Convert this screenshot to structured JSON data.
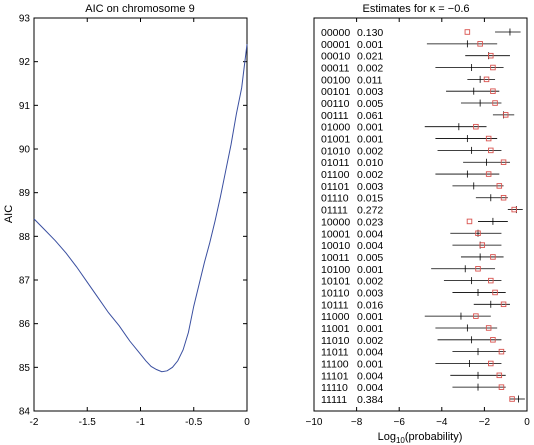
{
  "chart_data": [
    {
      "type": "line",
      "title": "AIC on chromosome 9",
      "xlabel": "",
      "ylabel": "AIC",
      "xlim": [
        -2,
        0
      ],
      "ylim": [
        84,
        93
      ],
      "xticks": [
        "-2",
        "-1.5",
        "-1",
        "-0.5",
        "0"
      ],
      "yticks": [
        "84",
        "85",
        "86",
        "87",
        "88",
        "89",
        "90",
        "91",
        "92",
        "93"
      ],
      "grid": false,
      "color": "#3a4fa0",
      "x": [
        -2.0,
        -1.9,
        -1.8,
        -1.7,
        -1.6,
        -1.5,
        -1.4,
        -1.3,
        -1.2,
        -1.1,
        -1.0,
        -0.95,
        -0.9,
        -0.85,
        -0.8,
        -0.75,
        -0.7,
        -0.65,
        -0.6,
        -0.55,
        -0.5,
        -0.45,
        -0.4,
        -0.35,
        -0.3,
        -0.25,
        -0.2,
        -0.15,
        -0.1,
        -0.05,
        0.0
      ],
      "y": [
        88.4,
        88.15,
        87.9,
        87.62,
        87.3,
        86.95,
        86.6,
        86.25,
        85.95,
        85.6,
        85.3,
        85.15,
        85.02,
        84.95,
        84.9,
        84.92,
        85.0,
        85.15,
        85.4,
        85.8,
        86.4,
        86.9,
        87.4,
        87.85,
        88.35,
        88.9,
        89.5,
        90.1,
        90.8,
        91.4,
        92.4
      ]
    },
    {
      "type": "scatter",
      "title": "Estimates  for κ = −0.6",
      "xlabel": "Log10(probability)",
      "xlabel_main": "Log",
      "xlabel_sub": "10",
      "xlabel_rest": "(probability)",
      "xlim": [
        -10,
        0
      ],
      "xticks": [
        "−10",
        "−8",
        "−6",
        "−4",
        "−2",
        "0"
      ],
      "grid": false,
      "line_color": "#000000",
      "marker_color": "#d9534f",
      "rows": [
        {
          "label": "00000",
          "value": "0.130",
          "lo": -1.5,
          "hi": -0.3,
          "tick": -0.8,
          "square": -2.8
        },
        {
          "label": "00001",
          "value": "0.001",
          "lo": -4.7,
          "hi": -1.4,
          "tick": -2.8,
          "square": -2.2
        },
        {
          "label": "00010",
          "value": "0.021",
          "lo": -2.9,
          "hi": -0.8,
          "tick": -1.8,
          "square": -1.7
        },
        {
          "label": "00011",
          "value": "0.002",
          "lo": -4.3,
          "hi": -1.1,
          "tick": -2.6,
          "square": -1.6
        },
        {
          "label": "00100",
          "value": "0.011",
          "lo": -2.8,
          "hi": -1.5,
          "tick": -2.2,
          "square": -1.9
        },
        {
          "label": "00101",
          "value": "0.003",
          "lo": -3.8,
          "hi": -1.3,
          "tick": -2.5,
          "square": -1.6
        },
        {
          "label": "00110",
          "value": "0.005",
          "lo": -3.1,
          "hi": -1.2,
          "tick": -2.2,
          "square": -1.5
        },
        {
          "label": "00111",
          "value": "0.061",
          "lo": -1.6,
          "hi": -0.6,
          "tick": -1.1,
          "square": -1.0
        },
        {
          "label": "01000",
          "value": "0.001",
          "lo": -4.8,
          "hi": -1.9,
          "tick": -3.2,
          "square": -2.4
        },
        {
          "label": "01001",
          "value": "0.001",
          "lo": -4.3,
          "hi": -1.4,
          "tick": -2.8,
          "square": -1.8
        },
        {
          "label": "01010",
          "value": "0.002",
          "lo": -4.2,
          "hi": -1.2,
          "tick": -2.6,
          "square": -1.7
        },
        {
          "label": "01011",
          "value": "0.010",
          "lo": -3.0,
          "hi": -0.8,
          "tick": -1.9,
          "square": -1.1
        },
        {
          "label": "01100",
          "value": "0.002",
          "lo": -4.3,
          "hi": -1.3,
          "tick": -2.8,
          "square": -1.8
        },
        {
          "label": "01101",
          "value": "0.003",
          "lo": -3.5,
          "hi": -1.1,
          "tick": -2.5,
          "square": -1.3
        },
        {
          "label": "01110",
          "value": "0.015",
          "lo": -2.4,
          "hi": -0.9,
          "tick": -1.7,
          "square": -1.1
        },
        {
          "label": "01111",
          "value": "0.272",
          "lo": -0.9,
          "hi": -0.2,
          "tick": -0.5,
          "square": -0.6
        },
        {
          "label": "10000",
          "value": "0.023",
          "lo": -2.3,
          "hi": -0.9,
          "tick": -1.6,
          "square": -2.7
        },
        {
          "label": "10001",
          "value": "0.004",
          "lo": -3.6,
          "hi": -1.2,
          "tick": -2.3,
          "square": -2.3
        },
        {
          "label": "10010",
          "value": "0.004",
          "lo": -3.5,
          "hi": -1.2,
          "tick": -2.2,
          "square": -2.1
        },
        {
          "label": "10011",
          "value": "0.005",
          "lo": -3.1,
          "hi": -1.1,
          "tick": -2.2,
          "square": -1.6
        },
        {
          "label": "10100",
          "value": "0.001",
          "lo": -4.5,
          "hi": -1.5,
          "tick": -2.9,
          "square": -2.3
        },
        {
          "label": "10101",
          "value": "0.002",
          "lo": -3.9,
          "hi": -1.2,
          "tick": -2.6,
          "square": -1.7
        },
        {
          "label": "10110",
          "value": "0.003",
          "lo": -3.5,
          "hi": -1.0,
          "tick": -2.3,
          "square": -1.5
        },
        {
          "label": "10111",
          "value": "0.016",
          "lo": -2.5,
          "hi": -0.8,
          "tick": -1.7,
          "square": -1.1
        },
        {
          "label": "11000",
          "value": "0.001",
          "lo": -4.8,
          "hi": -1.7,
          "tick": -3.1,
          "square": -2.4
        },
        {
          "label": "11001",
          "value": "0.001",
          "lo": -4.3,
          "hi": -1.4,
          "tick": -2.8,
          "square": -1.8
        },
        {
          "label": "11010",
          "value": "0.002",
          "lo": -4.2,
          "hi": -1.2,
          "tick": -2.6,
          "square": -1.6
        },
        {
          "label": "11011",
          "value": "0.004",
          "lo": -3.5,
          "hi": -1.0,
          "tick": -2.3,
          "square": -1.2
        },
        {
          "label": "11100",
          "value": "0.001",
          "lo": -4.3,
          "hi": -1.2,
          "tick": -2.7,
          "square": -1.7
        },
        {
          "label": "11101",
          "value": "0.004",
          "lo": -3.6,
          "hi": -1.0,
          "tick": -2.3,
          "square": -1.3
        },
        {
          "label": "11110",
          "value": "0.004",
          "lo": -3.5,
          "hi": -1.0,
          "tick": -2.3,
          "square": -1.2
        },
        {
          "label": "11111",
          "value": "0.384",
          "lo": -0.8,
          "hi": -0.1,
          "tick": -0.4,
          "square": -0.7
        }
      ]
    }
  ]
}
